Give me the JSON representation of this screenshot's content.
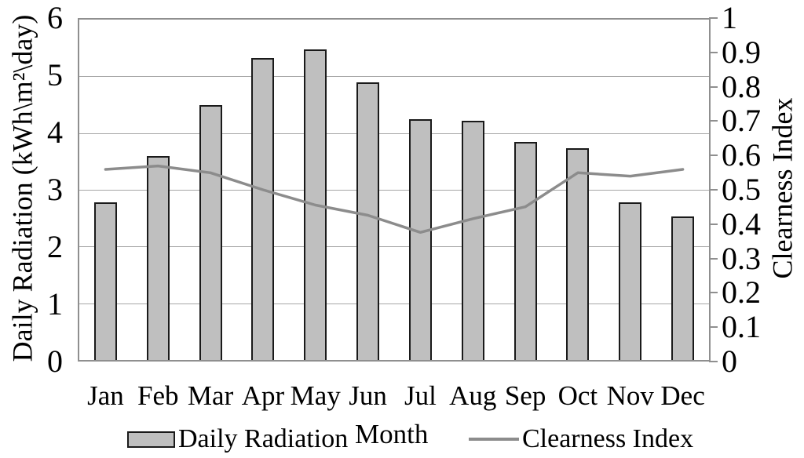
{
  "chart_data": {
    "type": "bar",
    "subtype": "bar-line-combo",
    "categories": [
      "Jan",
      "Feb",
      "Mar",
      "Apr",
      "May",
      "Jun",
      "Jul",
      "Aug",
      "Sep",
      "Oct",
      "Nov",
      "Dec"
    ],
    "series": [
      {
        "name": "Daily Radiation",
        "kind": "bar",
        "axis": "left",
        "values": [
          2.78,
          3.6,
          4.5,
          5.32,
          5.47,
          4.9,
          4.25,
          4.21,
          3.85,
          3.73,
          2.78,
          2.53
        ]
      },
      {
        "name": "Clearness Index",
        "kind": "line",
        "axis": "right",
        "values": [
          0.56,
          0.57,
          0.55,
          0.5,
          0.455,
          0.425,
          0.375,
          0.415,
          0.45,
          0.55,
          0.54,
          0.56
        ]
      }
    ],
    "left_axis": {
      "title": "Daily Radiation (kWh\\m²\\day)",
      "min": 0,
      "max": 6,
      "step": 1,
      "ticks": [
        "6",
        "5",
        "4",
        "3",
        "2",
        "1",
        "0"
      ]
    },
    "right_axis": {
      "title": "Clearness Index",
      "min": 0,
      "max": 1,
      "step": 0.1,
      "ticks": [
        "1",
        "0.9",
        "0.8",
        "0.7",
        "0.6",
        "0.5",
        "0.4",
        "0.3",
        "0.2",
        "0.1",
        "0"
      ]
    },
    "x_axis": {
      "title": "Month"
    },
    "legend": [
      {
        "label": "Daily Radiation",
        "swatch": "rect"
      },
      {
        "label": "Clearness Index",
        "swatch": "line"
      }
    ],
    "grid": true,
    "legend_position": "bottom"
  },
  "style": {
    "bar_fill": "#bfbfbf",
    "bar_border": "#1a1a1a",
    "line_color": "#8c8c8c",
    "grid_color": "#a6a6a6",
    "axis_color": "#8f8f8f",
    "text_color": "#000000",
    "background": "#ffffff"
  }
}
